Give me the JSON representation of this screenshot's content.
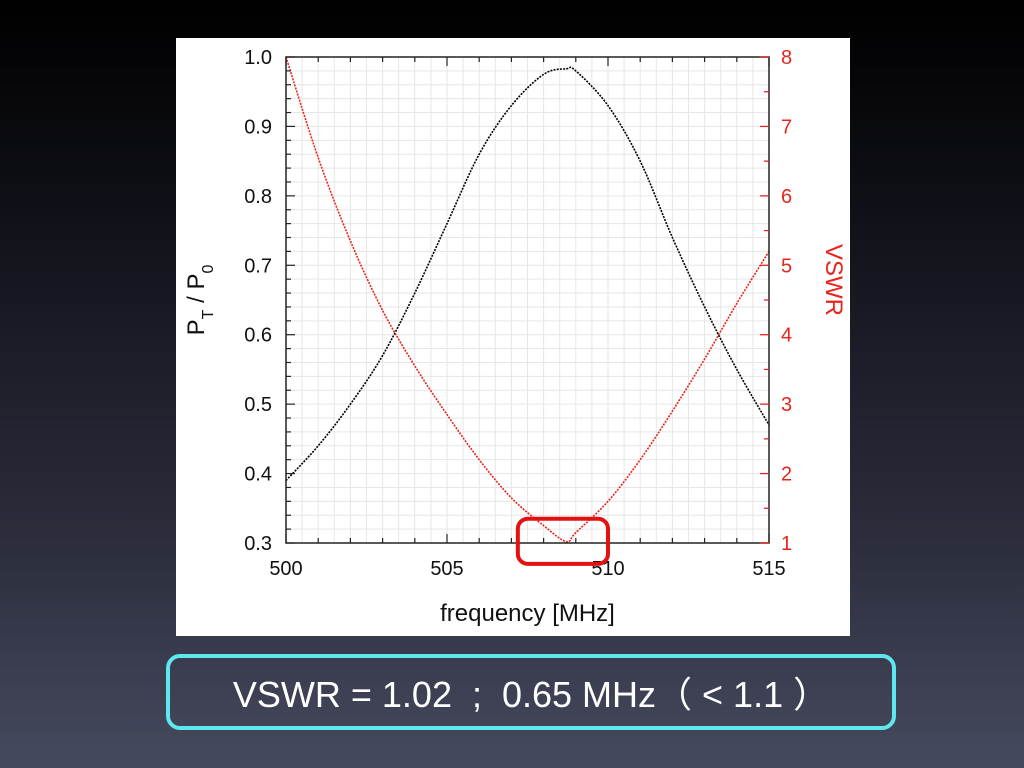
{
  "caption": "VSWR = 1.02  ;  0.65 MHz（ < 1.1 ）",
  "colors": {
    "left_series": "#000000",
    "right_series": "#e8251d",
    "right_axis": "#e8251d",
    "highlight": "#e51010",
    "caption_border": "#5ee8ee"
  },
  "chart_data": {
    "type": "line",
    "xlabel": "frequency [MHz]",
    "ylabel": "P_T / P_0",
    "ylabel_main": "P",
    "ylabel_sub1": "T",
    "ylabel_mid": " / P",
    "ylabel_sub2": "0",
    "y2label": "VSWR",
    "xlim": [
      500,
      515
    ],
    "ylim": [
      0.3,
      1.0
    ],
    "y2lim": [
      1,
      8
    ],
    "xticks": [
      "500",
      "505",
      "510",
      "515"
    ],
    "yticks": [
      "0.3",
      "0.4",
      "0.5",
      "0.6",
      "0.7",
      "0.8",
      "0.9",
      "1.0"
    ],
    "y2ticks": [
      "1",
      "2",
      "3",
      "4",
      "5",
      "6",
      "7",
      "8"
    ],
    "grid": true,
    "series": [
      {
        "axis": "left",
        "x": [
          500,
          501,
          502,
          503,
          504,
          505,
          506,
          507,
          508,
          508.7,
          509,
          510,
          511,
          512,
          513,
          514,
          515
        ],
        "values": [
          0.39,
          0.44,
          0.5,
          0.57,
          0.66,
          0.76,
          0.86,
          0.93,
          0.975,
          0.983,
          0.98,
          0.93,
          0.85,
          0.74,
          0.64,
          0.55,
          0.47
        ]
      },
      {
        "axis": "right",
        "x": [
          500,
          501,
          502,
          503,
          504,
          505,
          506,
          507,
          508,
          508.7,
          509,
          510,
          511,
          512,
          513,
          514,
          515
        ],
        "values": [
          8.0,
          6.55,
          5.35,
          4.35,
          3.55,
          2.85,
          2.2,
          1.65,
          1.25,
          1.02,
          1.15,
          1.6,
          2.2,
          2.9,
          3.65,
          4.45,
          5.2
        ]
      }
    ],
    "highlight_box": {
      "x": [
        507.2,
        510.0
      ],
      "y2": [
        0.7,
        1.35
      ]
    }
  }
}
